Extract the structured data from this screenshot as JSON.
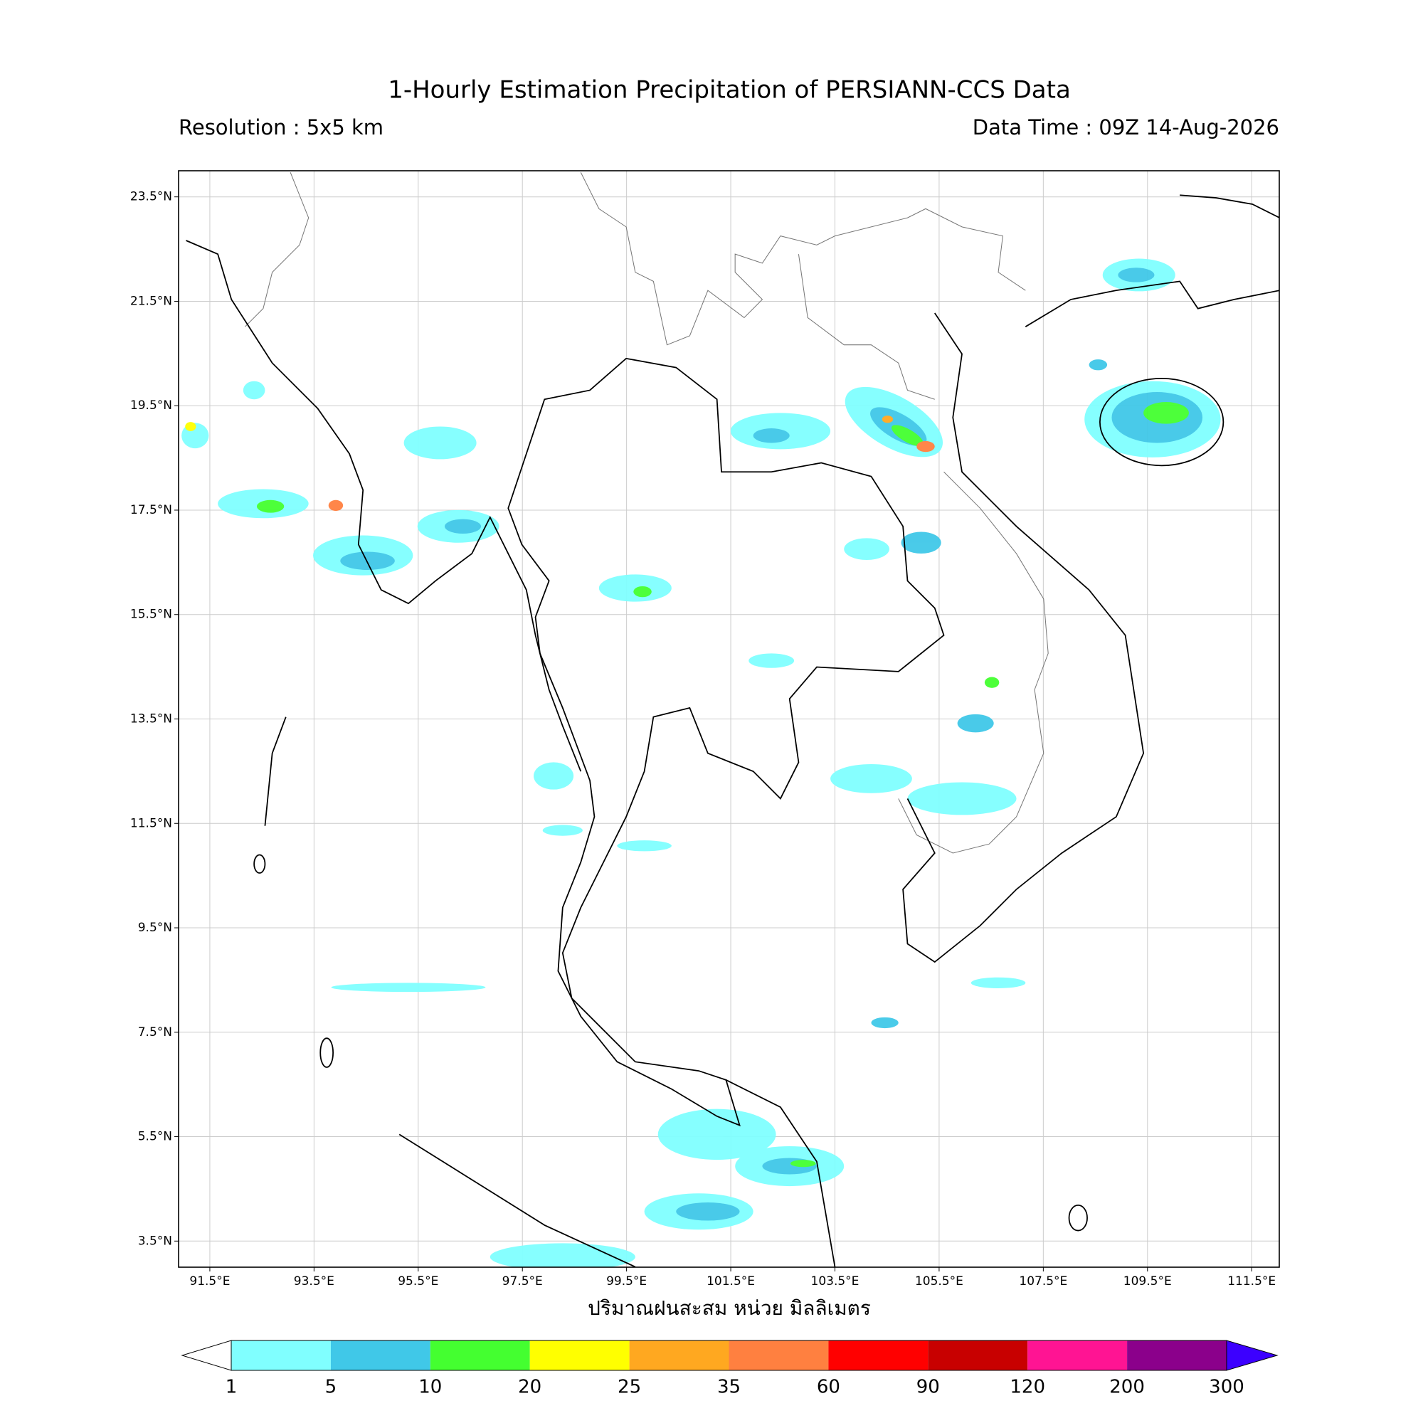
{
  "title": "1-Hourly Estimation Precipitation of PERSIANN-CCS Data",
  "resolution": "Resolution : 5x5 km",
  "data_time": "Data Time : 09Z 14-Aug-2026",
  "map": {
    "xlim": [
      90.9,
      112.03
    ],
    "ylim": [
      3.0,
      24.0
    ],
    "xticks": [
      {
        "value": 91.5,
        "label": "91.5°E"
      },
      {
        "value": 93.5,
        "label": "93.5°E"
      },
      {
        "value": 95.5,
        "label": "95.5°E"
      },
      {
        "value": 97.5,
        "label": "97.5°E"
      },
      {
        "value": 99.5,
        "label": "99.5°E"
      },
      {
        "value": 101.5,
        "label": "101.5°E"
      },
      {
        "value": 103.5,
        "label": "103.5°E"
      },
      {
        "value": 105.5,
        "label": "105.5°E"
      },
      {
        "value": 107.5,
        "label": "107.5°E"
      },
      {
        "value": 109.5,
        "label": "109.5°E"
      },
      {
        "value": 111.5,
        "label": "111.5°E"
      }
    ],
    "yticks": [
      {
        "value": 23.5,
        "label": "23.5°N"
      },
      {
        "value": 21.5,
        "label": "21.5°N"
      },
      {
        "value": 19.5,
        "label": "19.5°N"
      },
      {
        "value": 17.5,
        "label": "17.5°N"
      },
      {
        "value": 15.5,
        "label": "15.5°N"
      },
      {
        "value": 13.5,
        "label": "13.5°N"
      },
      {
        "value": 11.5,
        "label": "11.5°N"
      },
      {
        "value": 9.5,
        "label": "9.5°N"
      },
      {
        "value": 7.5,
        "label": "7.5°N"
      },
      {
        "value": 5.5,
        "label": "5.5°N"
      },
      {
        "value": 3.5,
        "label": "3.5°N"
      }
    ],
    "grid": true
  },
  "colorbar": {
    "label": "ปริมาณฝนสะสม หน่วย มิลลิเมตร",
    "levels": [
      1,
      5,
      10,
      20,
      25,
      35,
      60,
      90,
      120,
      200,
      300
    ],
    "colors": [
      "#80ffff",
      "#40c8e8",
      "#44ff30",
      "#ffff00",
      "#ffa820",
      "#ff8040",
      "#ff0000",
      "#c80000",
      "#ff1493",
      "#8b008b"
    ],
    "under_color": "#ffffff",
    "over_color": "#3c00ff"
  }
}
